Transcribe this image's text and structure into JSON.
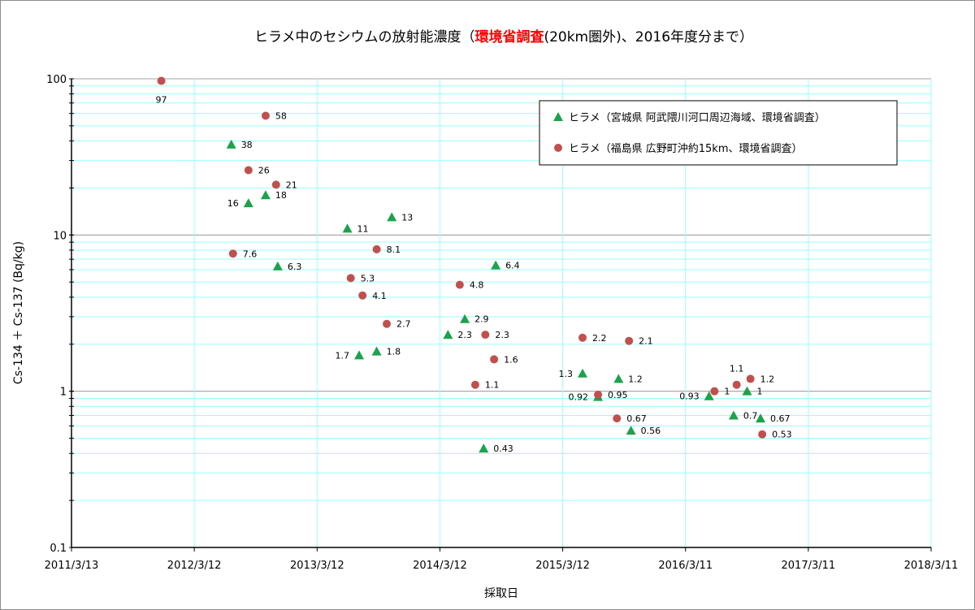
{
  "chart_data": {
    "type": "scatter",
    "title": {
      "part1": "ヒラメ中のセシウムの放射能濃度（",
      "highlight": "環境省調査",
      "part2": "(20km圏外)、2016年度分まで）"
    },
    "xlabel": "採取日",
    "ylabel": "Cs-134 ＋ Cs-137 (Bq/kg)",
    "y_scale": "log",
    "ylim": [
      0.1,
      100
    ],
    "y_ticks": [
      "0.1",
      "1",
      "10",
      "100"
    ],
    "x_ticks": [
      "2011/3/13",
      "2012/3/12",
      "2013/3/12",
      "2014/3/12",
      "2015/3/12",
      "2016/3/11",
      "2017/3/11",
      "2018/3/11"
    ],
    "xlim": [
      "2011-03-13",
      "2018-03-11"
    ],
    "legend_position": "top-right",
    "series": [
      {
        "name": "ヒラメ（宮城県 阿武隈川河口周辺海域、環境省調査）",
        "marker": "triangle",
        "color": "#1aa34a",
        "points": [
          {
            "x": "2012-06-30",
            "y": 38,
            "label": "38"
          },
          {
            "x": "2012-08-20",
            "y": 16,
            "label": "16"
          },
          {
            "x": "2012-10-10",
            "y": 18,
            "label": "18"
          },
          {
            "x": "2012-11-15",
            "y": 6.3,
            "label": "6.3"
          },
          {
            "x": "2013-06-10",
            "y": 11,
            "label": "11"
          },
          {
            "x": "2013-07-15",
            "y": 1.7,
            "label": "1.7"
          },
          {
            "x": "2013-09-05",
            "y": 1.8,
            "label": "1.8"
          },
          {
            "x": "2013-10-20",
            "y": 13,
            "label": "13"
          },
          {
            "x": "2014-04-05",
            "y": 2.3,
            "label": "2.3"
          },
          {
            "x": "2014-05-25",
            "y": 2.9,
            "label": "2.9"
          },
          {
            "x": "2014-07-20",
            "y": 0.43,
            "label": "0.43"
          },
          {
            "x": "2014-08-25",
            "y": 6.4,
            "label": "6.4"
          },
          {
            "x": "2015-05-10",
            "y": 1.3,
            "label": "1.3"
          },
          {
            "x": "2015-06-25",
            "y": 0.92,
            "label": "0.92"
          },
          {
            "x": "2015-08-25",
            "y": 1.2,
            "label": "1.2"
          },
          {
            "x": "2015-10-00",
            "y": 0.56,
            "label": "0.56"
          },
          {
            "x": "2016-05-20",
            "y": 0.93,
            "label": "0.93"
          },
          {
            "x": "2016-08-00",
            "y": 0.7,
            "label": "0.7"
          },
          {
            "x": "2016-09-10",
            "y": 1.0,
            "label": "1"
          },
          {
            "x": "2016-10-20",
            "y": 0.67,
            "label": "0.67"
          }
        ]
      },
      {
        "name": "ヒラメ（福島県 広野町沖約15km、環境省調査）",
        "marker": "circle",
        "color": "#c0504d",
        "points": [
          {
            "x": "2011-12-05",
            "y": 97,
            "label": "97"
          },
          {
            "x": "2012-07-05",
            "y": 7.6,
            "label": "7.6"
          },
          {
            "x": "2012-08-20",
            "y": 26,
            "label": "26"
          },
          {
            "x": "2012-10-10",
            "y": 58,
            "label": "58"
          },
          {
            "x": "2012-11-10",
            "y": 21,
            "label": "21"
          },
          {
            "x": "2013-06-20",
            "y": 5.3,
            "label": "5.3"
          },
          {
            "x": "2013-07-25",
            "y": 4.1,
            "label": "4.1"
          },
          {
            "x": "2013-09-05",
            "y": 8.1,
            "label": "8.1"
          },
          {
            "x": "2013-10-05",
            "y": 2.7,
            "label": "2.7"
          },
          {
            "x": "2014-05-10",
            "y": 4.8,
            "label": "4.8"
          },
          {
            "x": "2014-06-25",
            "y": 1.1,
            "label": "1.1"
          },
          {
            "x": "2014-07-25",
            "y": 2.3,
            "label": "2.3"
          },
          {
            "x": "2014-08-20",
            "y": 1.6,
            "label": "1.6"
          },
          {
            "x": "2015-05-10",
            "y": 2.2,
            "label": "2.2"
          },
          {
            "x": "2015-06-25",
            "y": 0.95,
            "label": "0.95"
          },
          {
            "x": "2015-08-20",
            "y": 0.67,
            "label": "0.67"
          },
          {
            "x": "2015-09-25",
            "y": 2.1,
            "label": "2.1"
          },
          {
            "x": "2016-06-05",
            "y": 1.0,
            "label": "1"
          },
          {
            "x": "2016-08-10",
            "y": 1.1,
            "label": "1.1"
          },
          {
            "x": "2016-09-20",
            "y": 1.2,
            "label": "1.2"
          },
          {
            "x": "2016-10-25",
            "y": 0.53,
            "label": "0.53"
          }
        ]
      }
    ]
  }
}
